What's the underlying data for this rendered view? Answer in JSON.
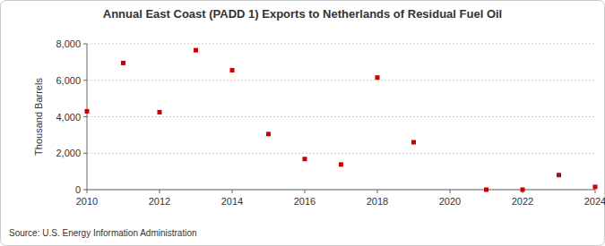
{
  "chart_data": {
    "type": "scatter",
    "title": "Annual East Coast (PADD 1) Exports to Netherlands of Residual Fuel Oil",
    "y_label": "Thousand Barrels",
    "source": "Source: U.S. Energy Information Administration",
    "x": [
      2010,
      2011,
      2012,
      2013,
      2014,
      2015,
      2016,
      2017,
      2018,
      2019,
      2021,
      2022,
      2023,
      2024
    ],
    "values": [
      4300,
      6950,
      4250,
      7650,
      6550,
      3050,
      1680,
      1380,
      6150,
      2600,
      0,
      0,
      800,
      150
    ],
    "color": "#cc0000",
    "marker": "square",
    "xlim": [
      2010,
      2024
    ],
    "xticks": [
      2010,
      2012,
      2014,
      2016,
      2018,
      2020,
      2022,
      2024
    ],
    "ylim": [
      0,
      8000
    ],
    "yticks": [
      0,
      {
        "value": 2000,
        "label": "2,000"
      },
      {
        "value": 4000,
        "label": "4,000"
      },
      {
        "value": 6000,
        "label": "6,000"
      },
      {
        "value": 8000,
        "label": "8,000"
      }
    ],
    "grid": true
  }
}
